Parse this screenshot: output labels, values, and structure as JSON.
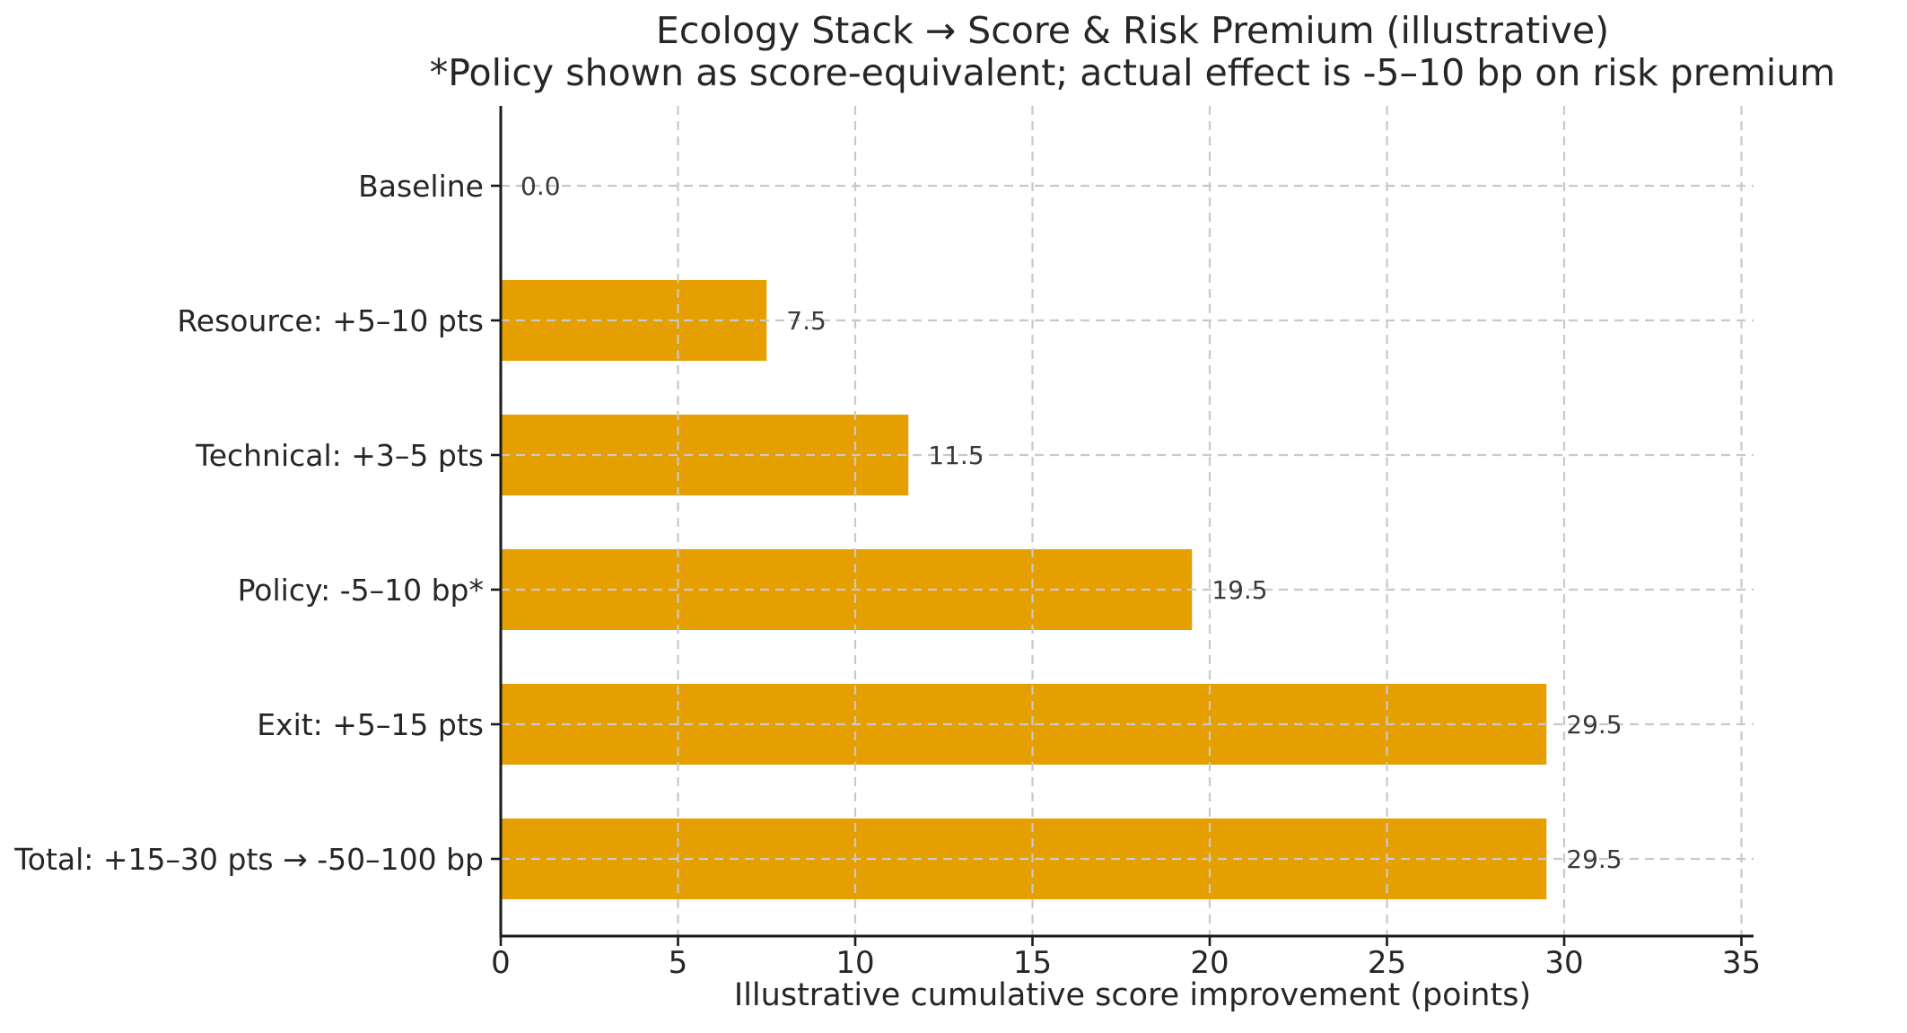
{
  "chart_data": {
    "type": "bar",
    "orientation": "horizontal",
    "title": "Ecology Stack → Score & Risk Premium (illustrative)",
    "subtitle": "*Policy shown as score-equivalent; actual effect is -5–10 bp on risk premium",
    "xlabel": "Illustrative cumulative score improvement (points)",
    "categories": [
      "Baseline",
      "Resource: +5–10 pts",
      "Technical: +3–5 pts",
      "Policy: -5–10 bp*",
      "Exit: +5–15 pts",
      "Total: +15–30 pts → -50–100 bp"
    ],
    "values": [
      0.0,
      7.5,
      11.5,
      19.5,
      29.5,
      29.5
    ],
    "value_labels": [
      "0.0",
      "7.5",
      "11.5",
      "19.5",
      "29.5",
      "29.5"
    ],
    "x_ticks": [
      0,
      5,
      10,
      15,
      20,
      25,
      30,
      35
    ],
    "x_tick_labels": [
      "0",
      "5",
      "10",
      "15",
      "20",
      "25",
      "30",
      "35"
    ],
    "xlim": [
      0,
      35.4
    ],
    "grid": "dashed-both-axes-over-bars",
    "legend": "none",
    "colors": {
      "bar": "#E69F00",
      "text": "#262626",
      "value_text": "#3a3a3a",
      "grid": "#c9c9c9",
      "spine": "#1a1a1a",
      "background": "#ffffff"
    }
  }
}
